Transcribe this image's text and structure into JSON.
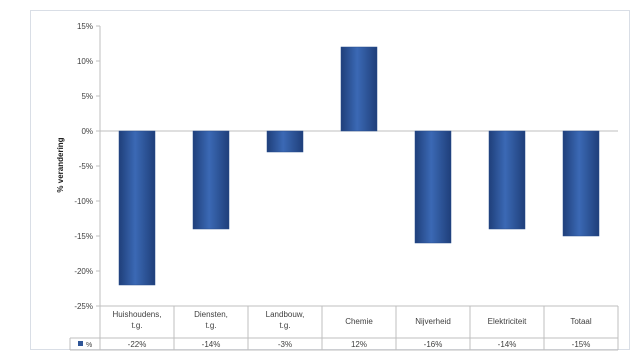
{
  "chart_data": {
    "type": "bar",
    "ylabel": "% verandering",
    "ylim": [
      -25,
      15
    ],
    "yticks": [
      15,
      10,
      5,
      0,
      -5,
      -10,
      -15,
      -20,
      -25
    ],
    "tick_suffix": "%",
    "grid": false,
    "legend_position": "bottom-left (data table)",
    "categories": [
      "Huishoudens, t.g.",
      "Diensten, t.g.",
      "Landbouw, t.g.",
      "Chemie",
      "Nijverheid",
      "Elektriciteit",
      "Totaal"
    ],
    "series": [
      {
        "name": "%",
        "values": [
          -22,
          -14,
          -3,
          12,
          -16,
          -14,
          -15
        ],
        "value_labels": [
          "-22%",
          "-14%",
          "-3%",
          "12%",
          "-16%",
          "-14%",
          "-15%"
        ],
        "color": "#2f5597"
      }
    ]
  }
}
